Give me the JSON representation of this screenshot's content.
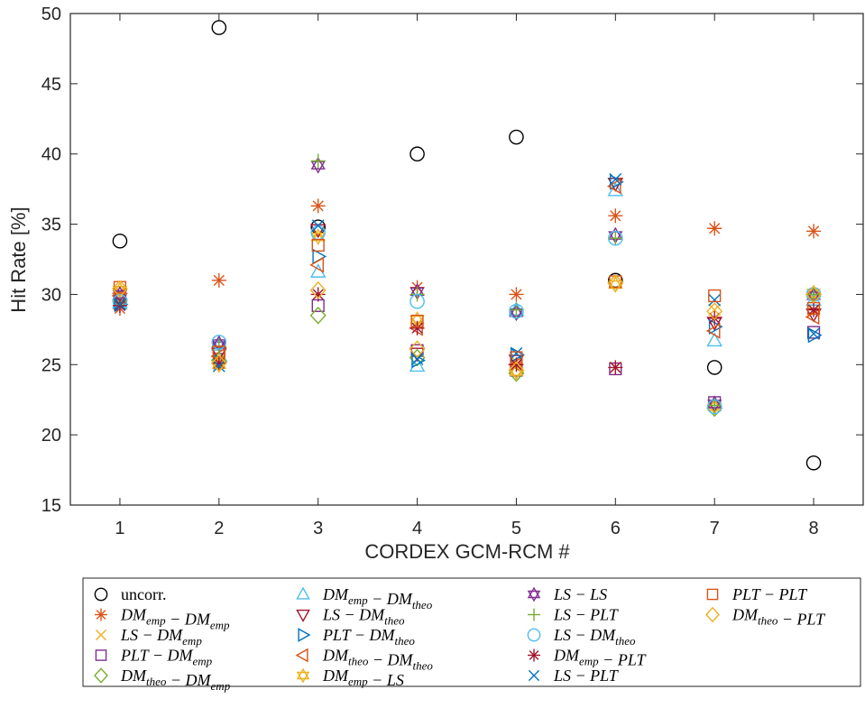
{
  "chart_data": {
    "type": "scatter",
    "ylabel": "Hit Rate [%]",
    "xlabel": "CORDEX GCM-RCM #",
    "xlim": [
      0.5,
      8.5
    ],
    "ylim": [
      15,
      50
    ],
    "x_ticks": [
      "1",
      "2",
      "3",
      "4",
      "5",
      "6",
      "7",
      "8"
    ],
    "y_ticks": [
      "15",
      "20",
      "25",
      "30",
      "35",
      "40",
      "45",
      "50"
    ],
    "grid": false,
    "legend_position": "below",
    "x": [
      1,
      2,
      3,
      4,
      5,
      6,
      7,
      8
    ],
    "series": [
      {
        "name": "uncorr.",
        "marker": "circle",
        "color": "#000000",
        "values": [
          33.8,
          49.0,
          34.8,
          40.0,
          41.2,
          31.0,
          24.8,
          18.0
        ]
      },
      {
        "name": "DM_{emp} - DM_{emp}",
        "marker": "asterisk",
        "color": "#D95319",
        "values": [
          29.0,
          31.0,
          36.3,
          30.5,
          30.0,
          35.6,
          34.7,
          34.5
        ]
      },
      {
        "name": "LS - DM_{emp}",
        "marker": "x",
        "color": "#EDB120",
        "values": [
          30.2,
          25.5,
          34.3,
          27.9,
          25.2,
          24.8,
          28.9,
          28.8
        ]
      },
      {
        "name": "PLT - DM_{emp}",
        "marker": "square",
        "color": "#7E2F8E",
        "values": [
          29.8,
          26.2,
          29.2,
          26.0,
          24.6,
          24.7,
          22.3,
          27.3
        ]
      },
      {
        "name": "DM_{theo} - DM_{emp}",
        "marker": "diamond",
        "color": "#77AC30",
        "values": [
          29.6,
          25.3,
          28.5,
          25.5,
          24.4,
          30.8,
          21.9,
          30.0
        ]
      },
      {
        "name": "DM_{emp} - DM_{theo}",
        "marker": "triangle-up",
        "color": "#4DBEEE",
        "values": [
          29.4,
          26.4,
          31.6,
          24.9,
          28.9,
          37.4,
          26.7,
          29.6
        ]
      },
      {
        "name": "LS - DM_{theo}",
        "marker": "triangle-down",
        "color": "#A2142F",
        "values": [
          29.7,
          25.8,
          34.6,
          25.8,
          25.3,
          37.9,
          28.0,
          28.6
        ]
      },
      {
        "name": "PLT - DM_{theo}",
        "marker": "triangle-right",
        "color": "#0072BD",
        "values": [
          29.3,
          25.2,
          32.7,
          25.3,
          25.7,
          38.0,
          27.7,
          27.1
        ]
      },
      {
        "name": "DM_{theo} - DM_{theo}",
        "marker": "triangle-left",
        "color": "#D95319",
        "values": [
          29.9,
          25.6,
          32.1,
          27.6,
          25.0,
          37.7,
          27.4,
          28.4
        ]
      },
      {
        "name": "DM_{emp} - LS",
        "marker": "hexagram",
        "color": "#EDB120",
        "values": [
          30.3,
          25.0,
          34.1,
          28.2,
          24.5,
          30.7,
          22.0,
          30.1
        ]
      },
      {
        "name": "LS - LS",
        "marker": "hexagram",
        "color": "#7E2F8E",
        "values": [
          30.0,
          26.5,
          39.2,
          30.2,
          28.7,
          34.2,
          22.2,
          29.9
        ]
      },
      {
        "name": "LS - PLT",
        "marker": "plus",
        "color": "#77AC30",
        "values": [
          29.5,
          26.3,
          39.5,
          30.0,
          28.9,
          34.0,
          22.1,
          30.0
        ]
      },
      {
        "name": "LS - DM_{theo}",
        "marker": "circle",
        "color": "#4DBEEE",
        "values": [
          29.5,
          26.6,
          34.4,
          29.5,
          28.8,
          34.0,
          22.0,
          30.0
        ]
      },
      {
        "name": "DM_{emp} - PLT",
        "marker": "asterisk",
        "color": "#A2142F",
        "values": [
          29.2,
          25.1,
          30.0,
          27.6,
          25.0,
          24.8,
          28.3,
          28.9
        ]
      },
      {
        "name": "LS - PLT",
        "marker": "x",
        "color": "#0072BD",
        "values": [
          29.3,
          24.9,
          34.9,
          25.4,
          25.8,
          38.2,
          29.6,
          27.2
        ]
      },
      {
        "name": "PLT - PLT",
        "marker": "square",
        "color": "#D95319",
        "values": [
          30.5,
          25.9,
          33.5,
          28.1,
          25.5,
          30.9,
          29.9,
          29.0
        ]
      },
      {
        "name": "DM_{theo} - PLT",
        "marker": "diamond",
        "color": "#EDB120",
        "values": [
          30.4,
          25.1,
          30.3,
          26.1,
          24.6,
          30.8,
          28.8,
          30.0
        ]
      }
    ]
  },
  "legend": {
    "entries": [
      {
        "base": "uncorr.",
        "plain": true
      },
      {
        "segments": [
          [
            "DM",
            "emp"
          ],
          [
            " − "
          ],
          [
            "DM",
            "emp"
          ]
        ]
      },
      {
        "segments": [
          [
            "LS − DM",
            "emp"
          ]
        ]
      },
      {
        "segments": [
          [
            "PLT − DM",
            "emp"
          ]
        ]
      },
      {
        "segments": [
          [
            "DM",
            "theo"
          ],
          [
            " − DM",
            "emp"
          ]
        ]
      },
      {
        "segments": [
          [
            "DM",
            "emp"
          ],
          [
            " − DM",
            "theo"
          ]
        ]
      },
      {
        "segments": [
          [
            "LS − DM",
            "theo"
          ]
        ]
      },
      {
        "segments": [
          [
            "PLT − DM",
            "theo"
          ]
        ]
      },
      {
        "segments": [
          [
            "DM",
            "theo"
          ],
          [
            " − DM",
            "theo"
          ]
        ]
      },
      {
        "segments": [
          [
            "DM",
            "emp"
          ],
          [
            " − LS"
          ]
        ]
      },
      {
        "segments": [
          [
            "LS − LS"
          ]
        ]
      },
      {
        "segments": [
          [
            "LS − PLT"
          ]
        ]
      },
      {
        "segments": [
          [
            "LS − DM",
            "theo"
          ]
        ]
      },
      {
        "segments": [
          [
            "DM",
            "emp"
          ],
          [
            " − PLT"
          ]
        ]
      },
      {
        "segments": [
          [
            "LS − PLT"
          ]
        ]
      },
      {
        "segments": [
          [
            "PLT − PLT"
          ]
        ]
      },
      {
        "segments": [
          [
            "DM",
            "theo"
          ],
          [
            " − PLT"
          ]
        ]
      }
    ]
  }
}
